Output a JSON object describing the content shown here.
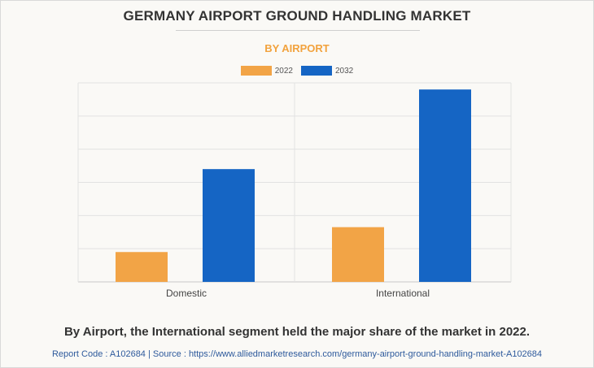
{
  "title": "GERMANY AIRPORT GROUND HANDLING MARKET",
  "subtitle": "BY AIRPORT",
  "footnote": "By Airport, the International segment held the major share of the market in 2022.",
  "source": {
    "report_code_label": "Report Code : A102684",
    "separator": "|",
    "source_label": "Source : https://www.alliedmarketresearch.com/germany-airport-ground-handling-market-A102684"
  },
  "colors": {
    "2022": "#f2a446",
    "2032": "#1565c4",
    "subtitle": "#f2a23d"
  },
  "chart_data": {
    "type": "bar",
    "title": "GERMANY AIRPORT GROUND HANDLING MARKET",
    "subtitle": "BY AIRPORT",
    "categories": [
      "Domestic",
      "International"
    ],
    "series": [
      {
        "name": "2022",
        "values": [
          0.9,
          1.65
        ]
      },
      {
        "name": "2032",
        "values": [
          3.4,
          5.8
        ]
      }
    ],
    "ylim": [
      0,
      6
    ],
    "y_tick_labels_shown": false,
    "grid": true,
    "legend": "top-center"
  }
}
